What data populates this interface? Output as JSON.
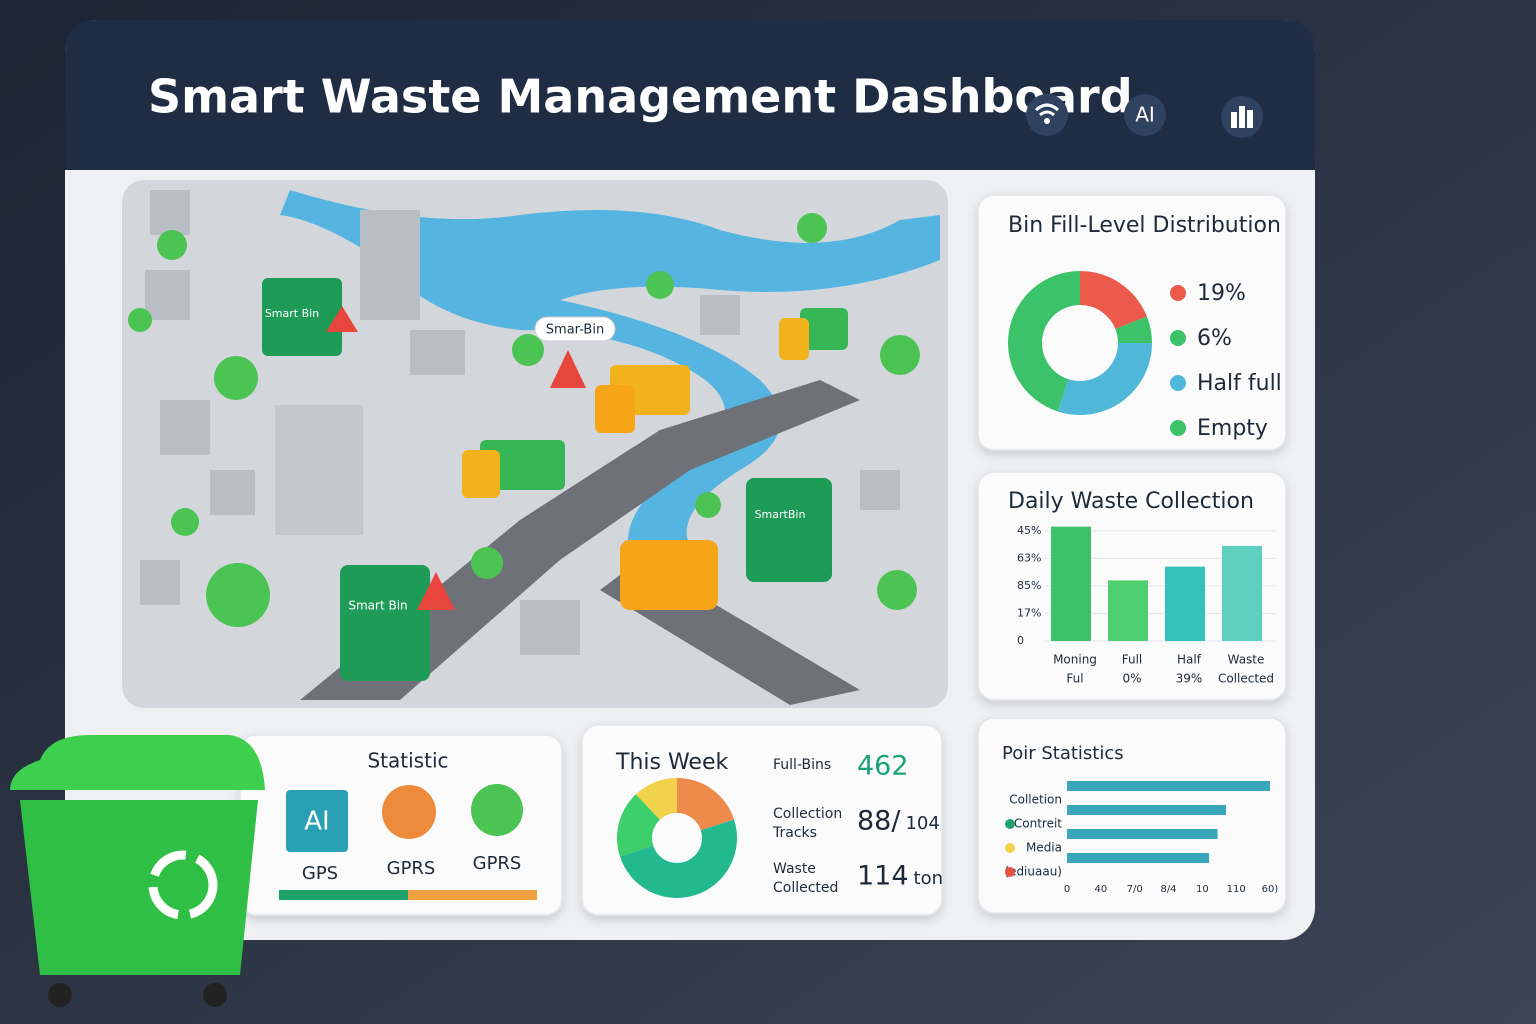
{
  "header": {
    "title": "Smart Waste Management Dashboard",
    "icon_label": "AI"
  },
  "map": {
    "labels": [
      "Smart Bin",
      "Smar-Bin",
      "SmartBin",
      "Smart Bin"
    ]
  },
  "fill_level": {
    "chart_data": {
      "type": "pie",
      "title": "Bin Fill-Level Distribution",
      "categories": [
        "19%",
        "6%",
        "Half full",
        "Empty"
      ],
      "values": [
        19,
        6,
        30,
        45
      ],
      "colors": [
        "#ec5a4c",
        "#3cc36a",
        "#4fb8d8",
        "#3cc36a"
      ]
    }
  },
  "daily": {
    "chart_data": {
      "type": "bar",
      "title": "Daily Waste Collection",
      "categories": [
        [
          "Moning",
          "Ful"
        ],
        [
          "Full",
          "0%"
        ],
        [
          "Half",
          "39%"
        ],
        [
          "Waste",
          "Collected"
        ]
      ],
      "values": [
        4.15,
        2.2,
        2.7,
        3.45
      ],
      "colors": [
        "#3cc36a",
        "#4fd070",
        "#33c2b8",
        "#5fcfc0"
      ],
      "ylim": [
        0,
        4.5
      ],
      "yticks": [
        0,
        {
          "value": 1,
          "label": "17%"
        },
        {
          "value": 2,
          "label": "85%"
        },
        {
          "value": 3,
          "label": "63%"
        },
        {
          "value": 4,
          "label": "45%"
        }
      ],
      "grid": true
    }
  },
  "statistic": {
    "title": "Statistic",
    "icon_label": "AI",
    "labels": [
      "GPS",
      "GPRS",
      "GPRS"
    ],
    "progress": {
      "values": [
        50,
        50
      ],
      "colors": [
        "#1fa36b",
        "#f0a040"
      ]
    }
  },
  "this_week": {
    "title": "This Week",
    "chart_data": {
      "type": "pie",
      "values": [
        20,
        50,
        18,
        12
      ],
      "colors": [
        "#ee8a4c",
        "#22b98f",
        "#3ccf6a",
        "#f3d24b"
      ]
    },
    "stats": [
      {
        "label": [
          "Full-Bins"
        ],
        "value": "462"
      },
      {
        "label": [
          "Collection",
          "Tracks"
        ],
        "value": "88/",
        "sub": "104"
      },
      {
        "label": [
          "Waste",
          "Collected"
        ],
        "value": "114",
        "sub": "ton"
      }
    ]
  },
  "poir": {
    "chart_data": {
      "type": "hbar",
      "title": "Poir Statistics",
      "categories": [
        "Colletion",
        "Contreit",
        "Media",
        "(ediuaau)"
      ],
      "values": [
        6,
        4.7,
        4.45,
        4.2
      ],
      "color": "#3aa6b9",
      "xlim": [
        0,
        6
      ],
      "xticks": [
        0,
        {
          "value": 1,
          "label": "40"
        },
        {
          "value": 2,
          "label": "7/0"
        },
        {
          "value": 3,
          "label": "8/4"
        },
        {
          "value": 4,
          "label": "10"
        },
        {
          "value": 5,
          "label": "110"
        },
        {
          "value": 6,
          "label": "60)"
        }
      ]
    }
  }
}
